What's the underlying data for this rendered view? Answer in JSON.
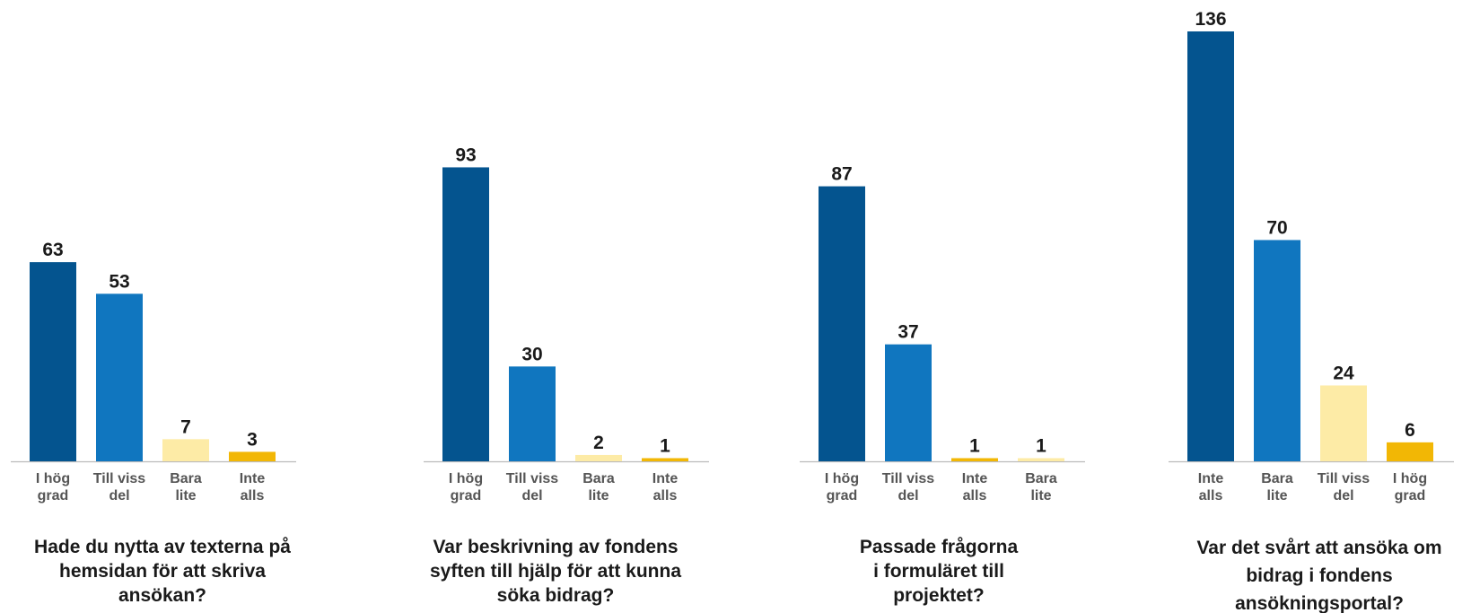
{
  "colors": {
    "dark_blue": "#04548f",
    "blue": "#1076bf",
    "light_yellow": "#fdeba6",
    "yellow": "#f2b705",
    "baseline": "#bbbbbb"
  },
  "chart_data": [
    {
      "type": "bar",
      "title": "Hade du nytta av texterna på hemsidan för att skriva ansökan?",
      "title_lines": [
        "Hade du nytta av texterna på",
        "hemsidan för att skriva",
        "ansökan?"
      ],
      "categories": [
        "I hög grad",
        "Till viss del",
        "Bara lite",
        "Inte alls"
      ],
      "category_lines": [
        [
          "I hög",
          "grad"
        ],
        [
          "Till viss",
          "del"
        ],
        [
          "Bara",
          "lite"
        ],
        [
          "Inte",
          "alls"
        ]
      ],
      "values": [
        63,
        53,
        7,
        3
      ],
      "bar_colors": [
        "#04548f",
        "#1076bf",
        "#fdeba6",
        "#f2b705"
      ],
      "xlabel": "",
      "ylabel": "",
      "ylim": [
        0,
        136
      ],
      "grid": false
    },
    {
      "type": "bar",
      "title": "Var beskrivning av fondens syften till hjälp för att kunna söka bidrag?",
      "title_lines": [
        "Var beskrivning av fondens",
        "syften till hjälp för att kunna",
        "söka bidrag?"
      ],
      "categories": [
        "I hög grad",
        "Till viss del",
        "Bara lite",
        "Inte alls"
      ],
      "category_lines": [
        [
          "I hög",
          "grad"
        ],
        [
          "Till viss",
          "del"
        ],
        [
          "Bara",
          "lite"
        ],
        [
          "Inte",
          "alls"
        ]
      ],
      "values": [
        93,
        30,
        2,
        1
      ],
      "bar_colors": [
        "#04548f",
        "#1076bf",
        "#fdeba6",
        "#f2b705"
      ],
      "xlabel": "",
      "ylabel": "",
      "ylim": [
        0,
        136
      ],
      "grid": false
    },
    {
      "type": "bar",
      "title": "Passade frågorna i formuläret till projektet?",
      "title_lines": [
        "Passade frågorna",
        "i formuläret till",
        "projektet?"
      ],
      "categories": [
        "I hög grad",
        "Till viss del",
        "Inte alls",
        "Bara lite"
      ],
      "category_lines": [
        [
          "I hög",
          "grad"
        ],
        [
          "Till viss",
          "del"
        ],
        [
          "Inte",
          "alls"
        ],
        [
          "Bara",
          "lite"
        ]
      ],
      "values": [
        87,
        37,
        1,
        1
      ],
      "bar_colors": [
        "#04548f",
        "#1076bf",
        "#f2b705",
        "#fdeba6"
      ],
      "xlabel": "",
      "ylabel": "",
      "ylim": [
        0,
        136
      ],
      "grid": false
    },
    {
      "type": "bar",
      "title": "Var det svårt att ansöka om bidrag i fondens ansökningsportal?",
      "title_lines": [
        "Var det svårt att ansöka om",
        "bidrag i fondens",
        "ansökningsportal?"
      ],
      "categories": [
        "Inte alls",
        "Bara lite",
        "Till viss del",
        "I hög grad"
      ],
      "category_lines": [
        [
          "Inte",
          "alls"
        ],
        [
          "Bara",
          "lite"
        ],
        [
          "Till viss",
          "del"
        ],
        [
          "I hög",
          "grad"
        ]
      ],
      "values": [
        136,
        70,
        24,
        6
      ],
      "bar_colors": [
        "#04548f",
        "#1076bf",
        "#fdeba6",
        "#f2b705"
      ],
      "xlabel": "",
      "ylabel": "",
      "ylim": [
        0,
        136
      ],
      "grid": false
    }
  ]
}
